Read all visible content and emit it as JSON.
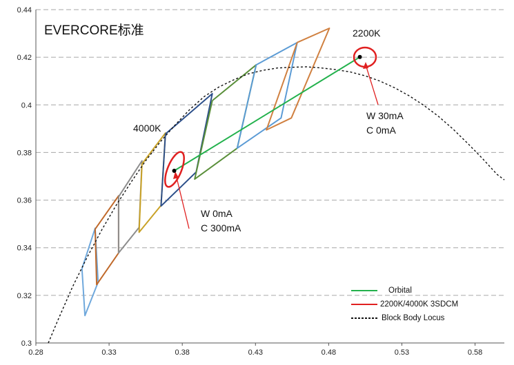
{
  "chart_data": {
    "type": "line",
    "title": "EVERCORE标准",
    "xlim": [
      0.28,
      0.6
    ],
    "ylim": [
      0.3,
      0.44
    ],
    "x_ticks": [
      "0.28",
      "0.33",
      "0.38",
      "0.43",
      "0.48",
      "0.53",
      "0.58"
    ],
    "y_ticks": [
      "0.3",
      "0.32",
      "0.34",
      "0.36",
      "0.38",
      "0.4",
      "0.42",
      "0.44"
    ],
    "grid": "horizontal-dashed",
    "legend_position": "bottom-right",
    "legend": [
      {
        "label": "Orbital",
        "color": "#22b14c",
        "style": "solid"
      },
      {
        "label": "2200K/4000K  3SDCM",
        "color": "#e02020",
        "style": "solid"
      },
      {
        "label": "Block Body Locus",
        "color": "#111111",
        "style": "dashed"
      }
    ],
    "series": [
      {
        "name": "Block Body Locus",
        "color": "#111111",
        "style": "dashed",
        "points": [
          [
            0.2885,
            0.3
          ],
          [
            0.295,
            0.3095
          ],
          [
            0.305,
            0.3235
          ],
          [
            0.315,
            0.336
          ],
          [
            0.325,
            0.3475
          ],
          [
            0.335,
            0.358
          ],
          [
            0.345,
            0.3675
          ],
          [
            0.355,
            0.3765
          ],
          [
            0.365,
            0.3845
          ],
          [
            0.375,
            0.3915
          ],
          [
            0.385,
            0.398
          ],
          [
            0.395,
            0.4035
          ],
          [
            0.405,
            0.4075
          ],
          [
            0.415,
            0.4105
          ],
          [
            0.425,
            0.413
          ],
          [
            0.435,
            0.4145
          ],
          [
            0.445,
            0.4155
          ],
          [
            0.455,
            0.4158
          ],
          [
            0.465,
            0.416
          ],
          [
            0.475,
            0.4155
          ],
          [
            0.485,
            0.4148
          ],
          [
            0.495,
            0.4138
          ],
          [
            0.505,
            0.4122
          ],
          [
            0.515,
            0.41
          ],
          [
            0.525,
            0.4072
          ],
          [
            0.535,
            0.4038
          ],
          [
            0.545,
            0.3998
          ],
          [
            0.555,
            0.3952
          ],
          [
            0.565,
            0.3898
          ],
          [
            0.575,
            0.3838
          ],
          [
            0.585,
            0.3775
          ],
          [
            0.595,
            0.3708
          ],
          [
            0.6,
            0.3685
          ]
        ]
      },
      {
        "name": "Orbital",
        "color": "#22b14c",
        "style": "solid",
        "points": [
          [
            0.3745,
            0.3723
          ],
          [
            0.5013,
            0.4201
          ]
        ]
      }
    ],
    "quadrangles": [
      {
        "color": "#6fa8dc",
        "points": [
          [
            0.3115,
            0.3312
          ],
          [
            0.3205,
            0.3482
          ],
          [
            0.3225,
            0.3255
          ],
          [
            0.3135,
            0.3115
          ],
          [
            0.3115,
            0.3312
          ]
        ]
      },
      {
        "color": "#c0692a",
        "points": [
          [
            0.3205,
            0.3478
          ],
          [
            0.3365,
            0.3618
          ],
          [
            0.3365,
            0.3378
          ],
          [
            0.3215,
            0.3245
          ],
          [
            0.3205,
            0.3478
          ]
        ]
      },
      {
        "color": "#8c8c8c",
        "points": [
          [
            0.3365,
            0.3614
          ],
          [
            0.3525,
            0.3765
          ],
          [
            0.3505,
            0.3485
          ],
          [
            0.3365,
            0.3378
          ],
          [
            0.3365,
            0.3614
          ]
        ]
      },
      {
        "color": "#c9a227",
        "points": [
          [
            0.3525,
            0.3752
          ],
          [
            0.3685,
            0.3882
          ],
          [
            0.3655,
            0.3578
          ],
          [
            0.3505,
            0.3465
          ],
          [
            0.3525,
            0.3752
          ]
        ]
      },
      {
        "color": "#2c4f8a",
        "points": [
          [
            0.3685,
            0.3878
          ],
          [
            0.4005,
            0.4047
          ],
          [
            0.3895,
            0.3718
          ],
          [
            0.3655,
            0.3575
          ],
          [
            0.3685,
            0.3878
          ]
        ]
      },
      {
        "color": "#5a8f3a",
        "points": [
          [
            0.4005,
            0.4018
          ],
          [
            0.4305,
            0.4168
          ],
          [
            0.4175,
            0.3818
          ],
          [
            0.3885,
            0.3688
          ],
          [
            0.4005,
            0.4018
          ]
        ]
      },
      {
        "color": "#5b9bd5",
        "points": [
          [
            0.4305,
            0.4168
          ],
          [
            0.4585,
            0.4262
          ],
          [
            0.4475,
            0.3945
          ],
          [
            0.4175,
            0.3818
          ],
          [
            0.4305,
            0.4168
          ]
        ]
      },
      {
        "color": "#d08040",
        "points": [
          [
            0.4585,
            0.4262
          ],
          [
            0.4805,
            0.4322
          ],
          [
            0.4545,
            0.3945
          ],
          [
            0.4375,
            0.3895
          ],
          [
            0.4585,
            0.4262
          ]
        ]
      }
    ],
    "markers": [
      {
        "label": "4000K",
        "x": 0.3745,
        "y": 0.3723
      },
      {
        "label": "2200K",
        "x": 0.5013,
        "y": 0.4201
      }
    ],
    "annotations": [
      {
        "text": "2200K"
      },
      {
        "text": "4000K"
      },
      {
        "text": "W  30mA"
      },
      {
        "text": "C    0mA"
      },
      {
        "text": "W    0mA"
      },
      {
        "text": "C  300mA"
      }
    ]
  }
}
